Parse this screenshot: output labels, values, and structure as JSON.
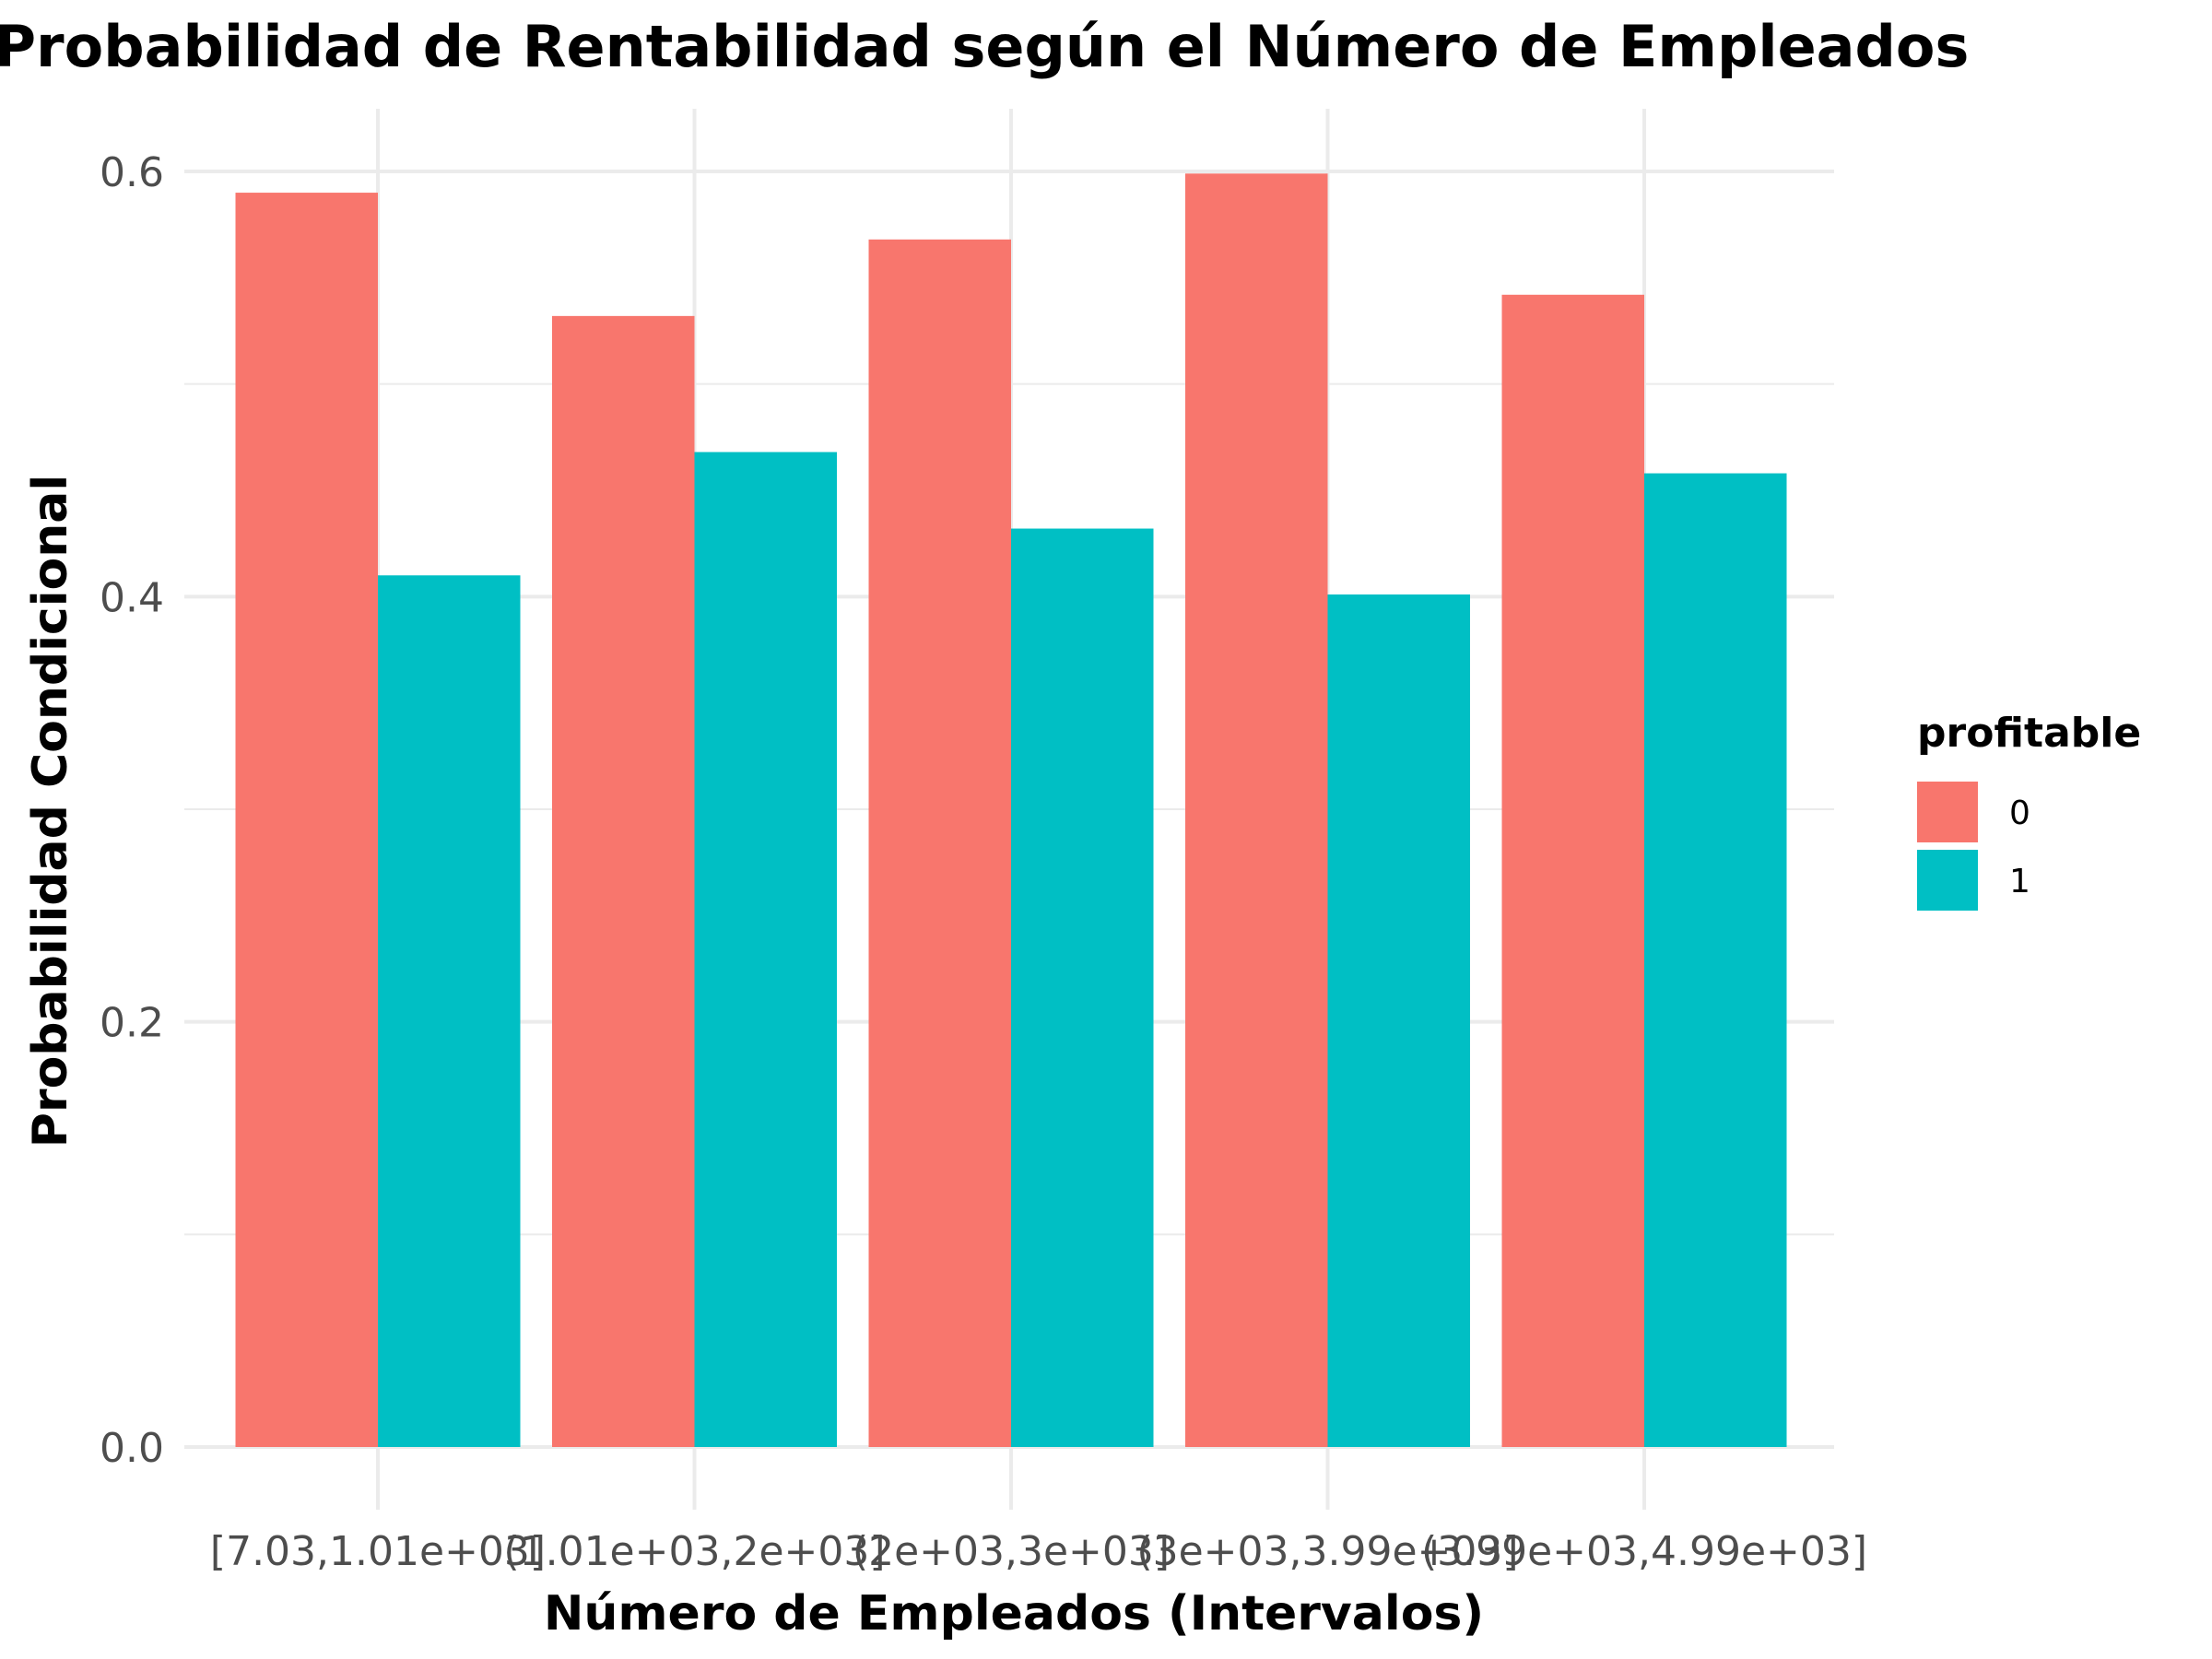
{
  "chart_data": {
    "type": "bar",
    "title": "Probabilidad de Rentabilidad según el Número de Empleados",
    "xlabel": "Número de Empleados (Intervalos)",
    "ylabel": "Probabilidad Condicional",
    "categories": [
      "[7.03,1.01e+03]",
      "(1.01e+03,2e+03]",
      "(2e+03,3e+03]",
      "(3e+03,3.99e+03]",
      "(3.99e+03,4.99e+03]"
    ],
    "series": [
      {
        "name": "0",
        "color": "#F8766D",
        "values": [
          0.59,
          0.532,
          0.568,
          0.599,
          0.542
        ]
      },
      {
        "name": "1",
        "color": "#00BFC4",
        "values": [
          0.41,
          0.468,
          0.432,
          0.401,
          0.458
        ]
      }
    ],
    "ylim": [
      0,
      0.6
    ],
    "yticks": [
      "0.0",
      "0.2",
      "0.4",
      "0.6"
    ],
    "legend_title": "profitable",
    "legend_position": "right",
    "grid": true
  }
}
